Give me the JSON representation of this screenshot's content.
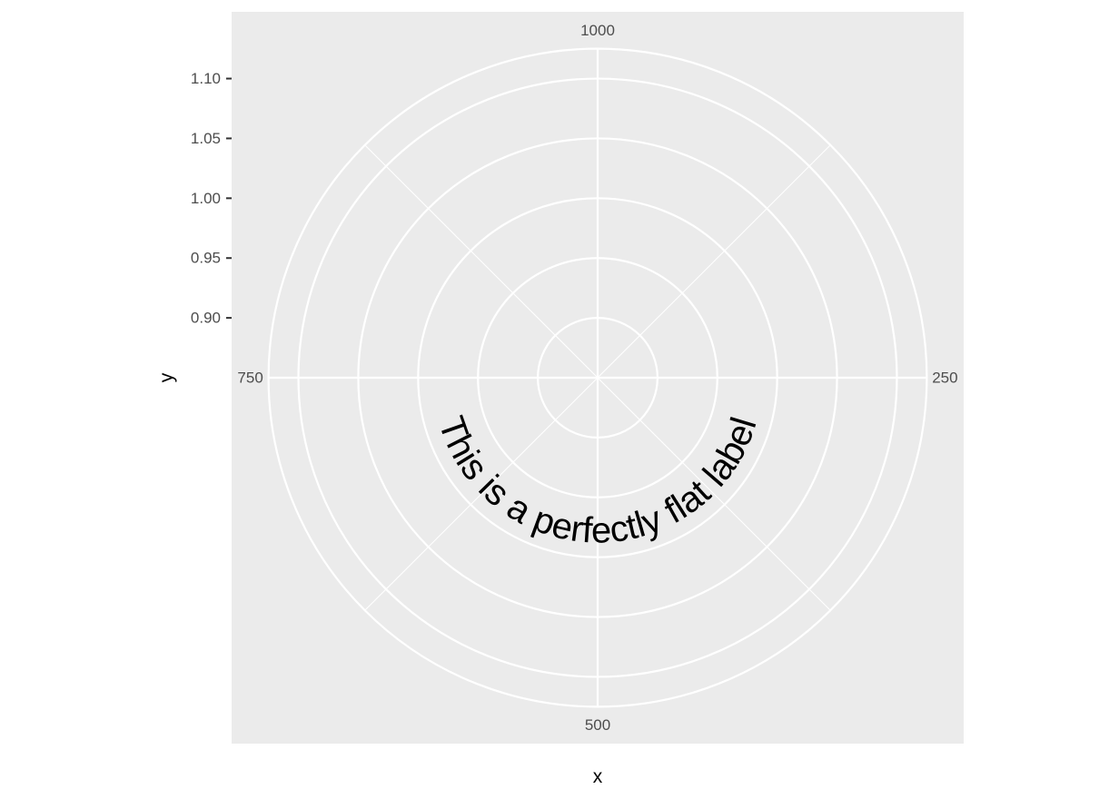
{
  "chart_data": {
    "type": "polar-text",
    "coord": "polar",
    "xlabel": "x",
    "ylabel": "y",
    "theta_ticks": [
      {
        "value": 1000,
        "label": "1000"
      },
      {
        "value": 250,
        "label": "250"
      },
      {
        "value": 500,
        "label": "500"
      },
      {
        "value": 750,
        "label": "750"
      }
    ],
    "theta_range": [
      0,
      1000
    ],
    "theta_minor": [
      125,
      375,
      625,
      875
    ],
    "y_ticks": [
      {
        "value": 0.9,
        "label": "0.90"
      },
      {
        "value": 0.95,
        "label": "0.95"
      },
      {
        "value": 1.0,
        "label": "1.00"
      },
      {
        "value": 1.05,
        "label": "1.05"
      },
      {
        "value": 1.1,
        "label": "1.10"
      }
    ],
    "ylim": [
      0.85,
      1.125
    ],
    "annotation": {
      "text": "This is a perfectly flat label",
      "x_start": 250,
      "x_end": 750,
      "y": 1.0,
      "direction": "through-500"
    },
    "panel_background": "#ebebeb",
    "grid_color": "#ffffff",
    "grid": true
  }
}
